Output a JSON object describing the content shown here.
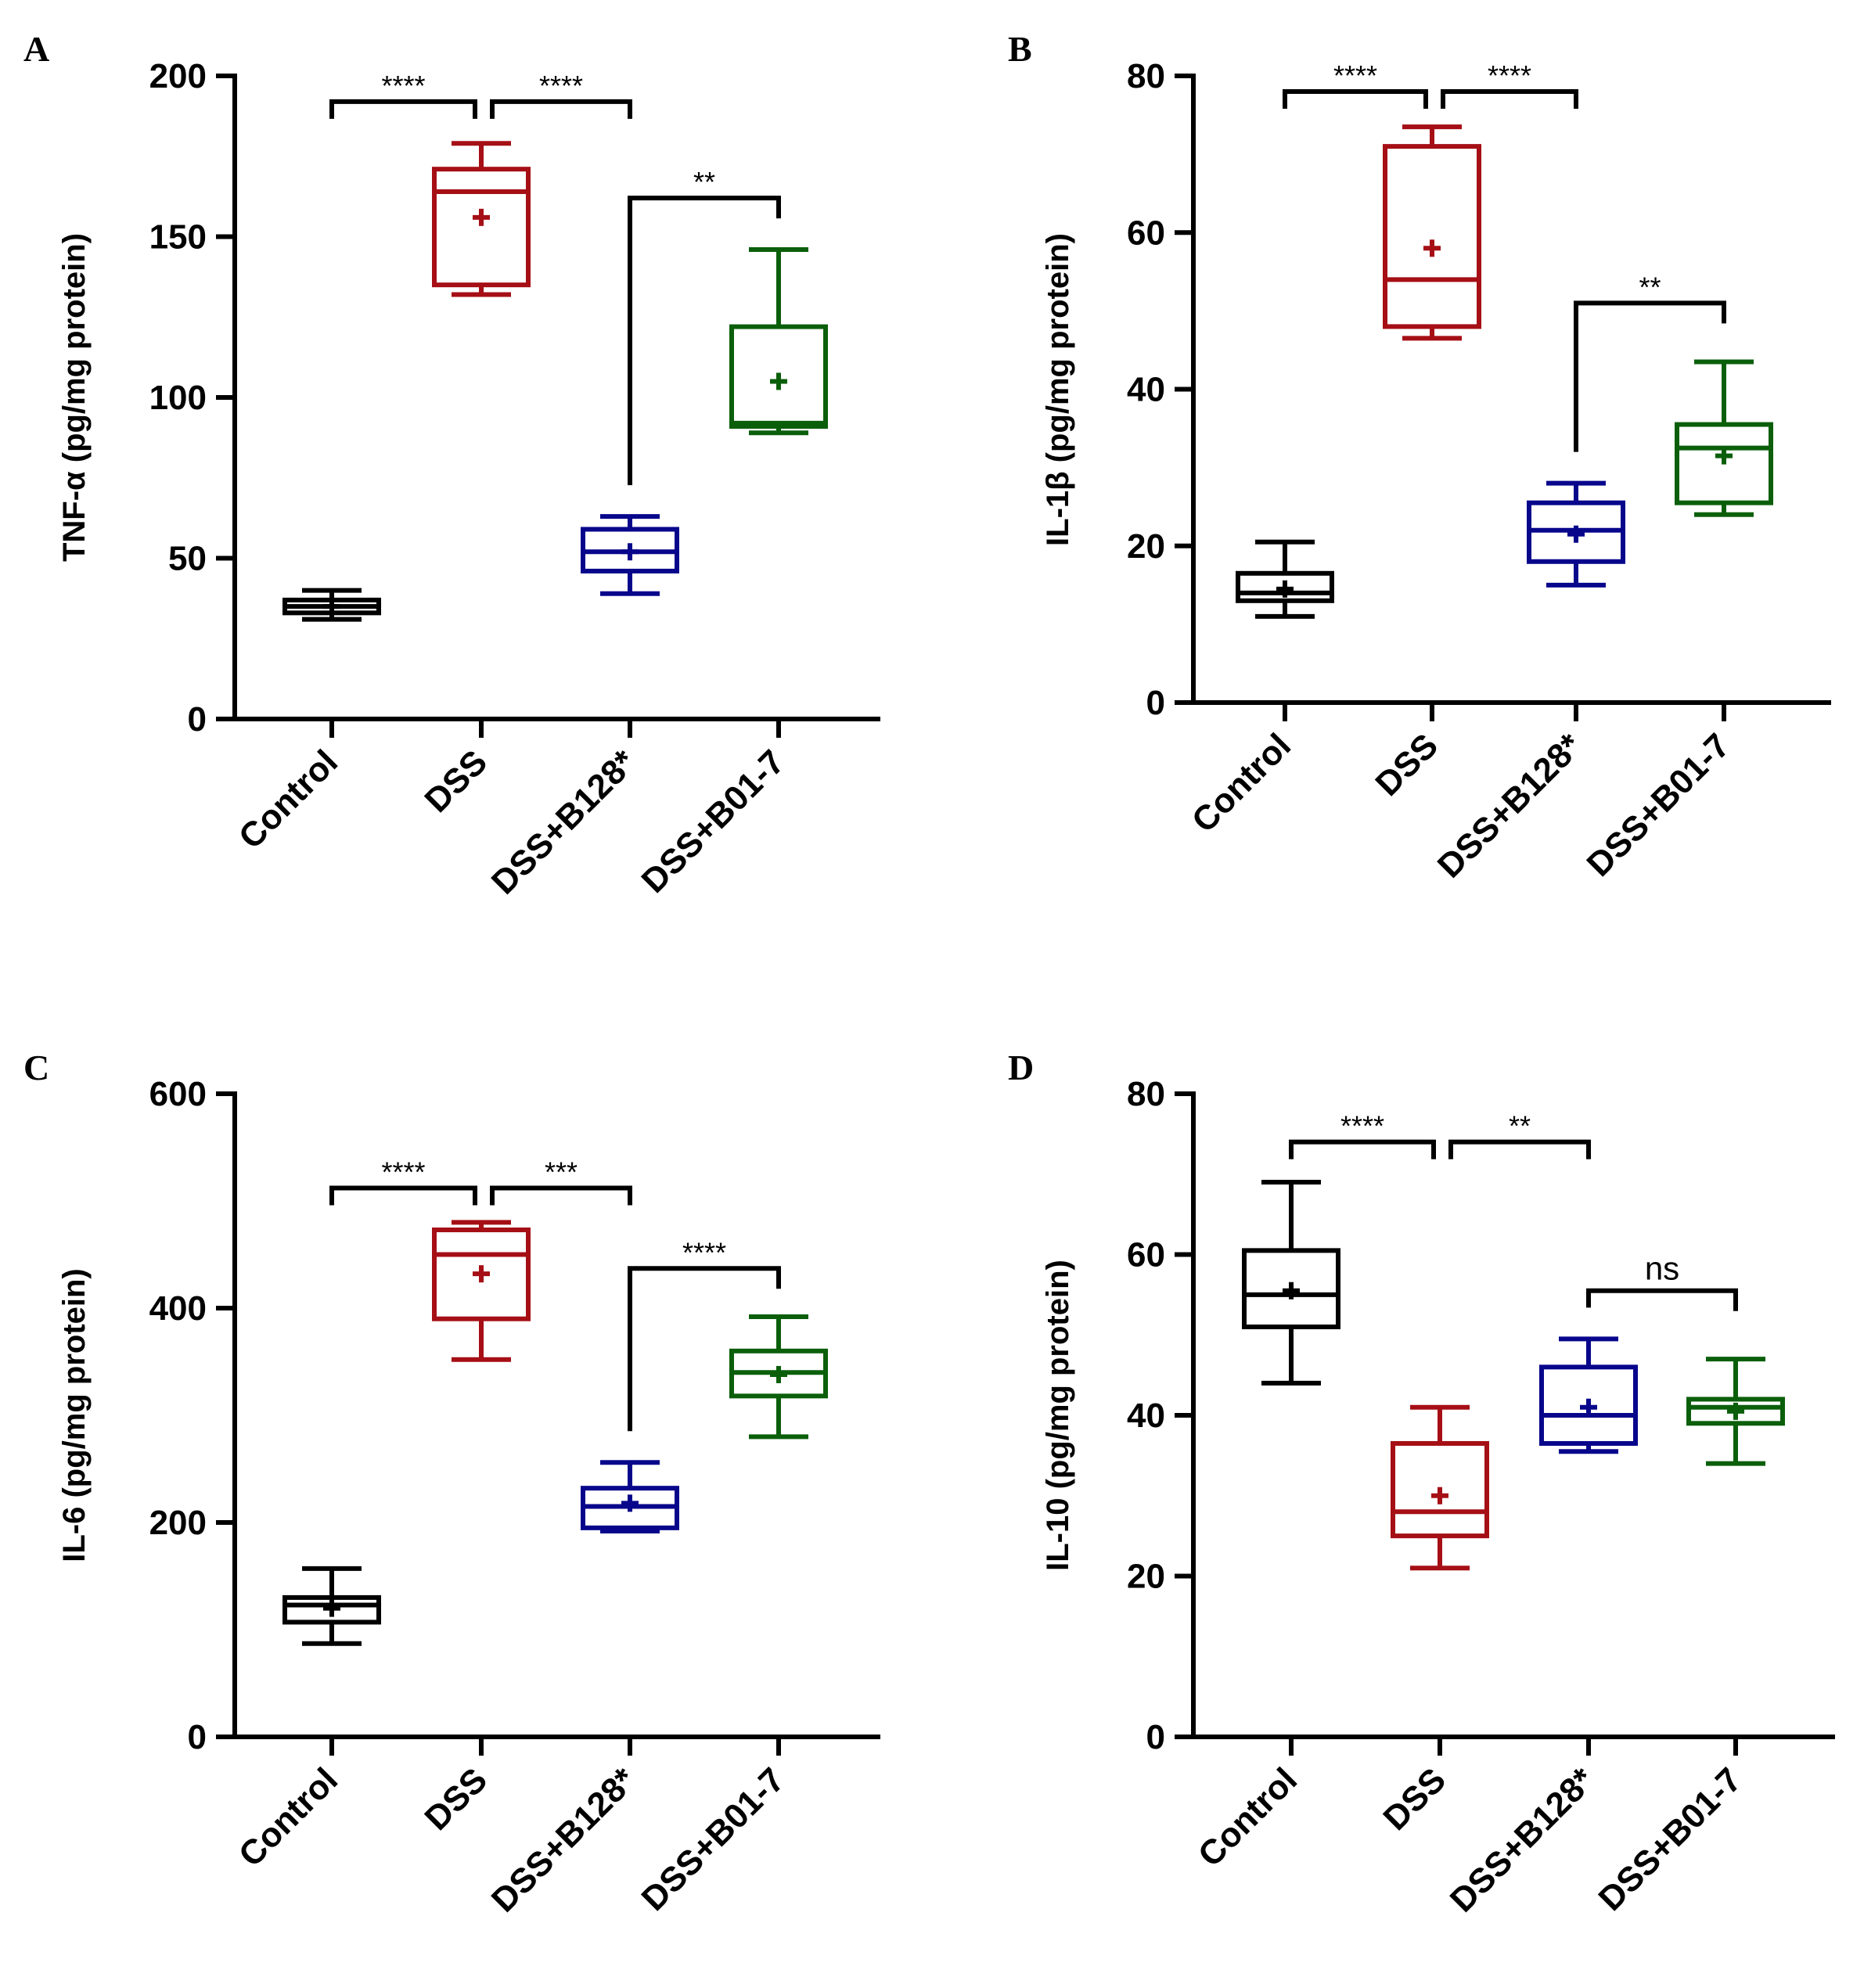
{
  "colors": {
    "Control": "#000000",
    "DSS": "#a50f15",
    "DSS+B128*": "#08068b",
    "DSS+B01-7": "#0b5f0b"
  },
  "chart_data": [
    {
      "panel": "A",
      "type": "box",
      "ylabel": "TNF-α (pg/mg protein)",
      "ylim": [
        0,
        200
      ],
      "yticks": [
        0,
        50,
        100,
        150,
        200
      ],
      "categories": [
        "Control",
        "DSS",
        "DSS+B128*",
        "DSS+B01-7"
      ],
      "boxes": [
        {
          "name": "Control",
          "min": 31,
          "q1": 33,
          "median": 35,
          "q3": 37,
          "max": 40,
          "mean": 35
        },
        {
          "name": "DSS",
          "min": 132,
          "q1": 135,
          "median": 164,
          "q3": 171,
          "max": 179,
          "mean": 156
        },
        {
          "name": "DSS+B128*",
          "min": 39,
          "q1": 46,
          "median": 52,
          "q3": 59,
          "max": 63,
          "mean": 52
        },
        {
          "name": "DSS+B01-7",
          "min": 89,
          "q1": 91,
          "median": 92,
          "q3": 122,
          "max": 146,
          "mean": 105
        }
      ],
      "comparisons": [
        {
          "from": 0,
          "to": 1,
          "y": 192,
          "label": "****"
        },
        {
          "from": 1,
          "to": 2,
          "y": 192,
          "label": "****"
        },
        {
          "from": 2,
          "to": 3,
          "y": 162,
          "label": "**"
        }
      ]
    },
    {
      "panel": "B",
      "type": "box",
      "ylabel": "IL-1β (pg/mg protein)",
      "ylim": [
        0,
        80
      ],
      "yticks": [
        0,
        20,
        40,
        60,
        80
      ],
      "categories": [
        "Control",
        "DSS",
        "DSS+B128*",
        "DSS+B01-7"
      ],
      "boxes": [
        {
          "name": "Control",
          "min": 11,
          "q1": 13,
          "median": 14,
          "q3": 16.5,
          "max": 20.5,
          "mean": 14.5
        },
        {
          "name": "DSS",
          "min": 46.5,
          "q1": 48,
          "median": 54,
          "q3": 71,
          "max": 73.5,
          "mean": 58
        },
        {
          "name": "DSS+B128*",
          "min": 15,
          "q1": 18,
          "median": 22,
          "q3": 25.5,
          "max": 28,
          "mean": 21.5
        },
        {
          "name": "DSS+B01-7",
          "min": 24,
          "q1": 25.5,
          "median": 32.5,
          "q3": 35.5,
          "max": 43.5,
          "mean": 31.5
        }
      ],
      "comparisons": [
        {
          "from": 0,
          "to": 1,
          "y": 78,
          "label": "****"
        },
        {
          "from": 1,
          "to": 2,
          "y": 78,
          "label": "****"
        },
        {
          "from": 2,
          "to": 3,
          "y": 51,
          "label": "**"
        }
      ]
    },
    {
      "panel": "C",
      "type": "box",
      "ylabel": "IL-6 (pg/mg protein)",
      "ylim": [
        0,
        600
      ],
      "yticks": [
        0,
        200,
        400,
        600
      ],
      "categories": [
        "Control",
        "DSS",
        "DSS+B128*",
        "DSS+B01-7"
      ],
      "boxes": [
        {
          "name": "Control",
          "min": 87,
          "q1": 107,
          "median": 123,
          "q3": 130,
          "max": 157,
          "mean": 120
        },
        {
          "name": "DSS",
          "min": 352,
          "q1": 390,
          "median": 450,
          "q3": 473,
          "max": 480,
          "mean": 432
        },
        {
          "name": "DSS+B128*",
          "min": 192,
          "q1": 195,
          "median": 215,
          "q3": 232,
          "max": 256,
          "mean": 218
        },
        {
          "name": "DSS+B01-7",
          "min": 280,
          "q1": 318,
          "median": 340,
          "q3": 360,
          "max": 392,
          "mean": 338
        }
      ],
      "comparisons": [
        {
          "from": 0,
          "to": 1,
          "y": 512,
          "label": "****"
        },
        {
          "from": 1,
          "to": 2,
          "y": 512,
          "label": "***"
        },
        {
          "from": 2,
          "to": 3,
          "y": 437,
          "label": "****"
        }
      ]
    },
    {
      "panel": "D",
      "type": "box",
      "ylabel": "IL-10 (pg/mg protein)",
      "ylim": [
        0,
        80
      ],
      "yticks": [
        0,
        20,
        40,
        60,
        80
      ],
      "categories": [
        "Control",
        "DSS",
        "DSS+B128*",
        "DSS+B01-7"
      ],
      "boxes": [
        {
          "name": "Control",
          "min": 44,
          "q1": 51,
          "median": 55,
          "q3": 60.5,
          "max": 69,
          "mean": 55.5
        },
        {
          "name": "DSS",
          "min": 21,
          "q1": 25,
          "median": 28,
          "q3": 36.5,
          "max": 41,
          "mean": 30
        },
        {
          "name": "DSS+B128*",
          "min": 35.5,
          "q1": 36.5,
          "median": 40,
          "q3": 46,
          "max": 49.5,
          "mean": 41
        },
        {
          "name": "DSS+B01-7",
          "min": 34,
          "q1": 39,
          "median": 41,
          "q3": 42,
          "max": 47,
          "mean": 40.5
        }
      ],
      "comparisons": [
        {
          "from": 0,
          "to": 1,
          "y": 74,
          "label": "****"
        },
        {
          "from": 1,
          "to": 2,
          "y": 74,
          "label": "**"
        },
        {
          "from": 2,
          "to": 3,
          "y": 55.5,
          "label": "ns"
        }
      ]
    }
  ]
}
